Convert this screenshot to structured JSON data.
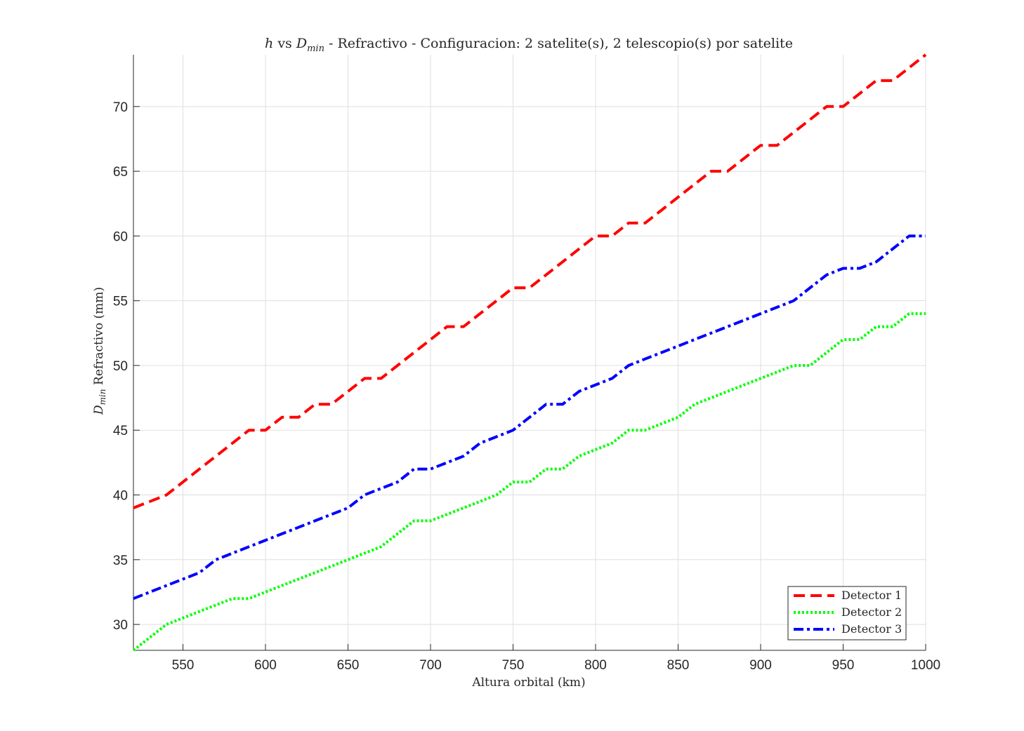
{
  "chart_data": {
    "type": "line",
    "title": {
      "italic_h": "h",
      "vs": " vs ",
      "D": "D",
      "sub": "min",
      "rest": " - Refractivo - Configuracion: 2 satelite(s), 2 telescopio(s) por satelite"
    },
    "xlabel": "Altura orbital (km)",
    "ylabel": {
      "D": "D",
      "sub": "min",
      "rest": " Refractivo (mm)"
    },
    "xlim": [
      520,
      1000
    ],
    "ylim": [
      28,
      74
    ],
    "xticks": [
      550,
      600,
      650,
      700,
      750,
      800,
      850,
      900,
      950,
      1000
    ],
    "yticks": [
      30,
      35,
      40,
      45,
      50,
      55,
      60,
      65,
      70
    ],
    "grid": true,
    "legend_position": "bottom-right",
    "x": [
      520,
      530,
      540,
      550,
      560,
      570,
      580,
      590,
      600,
      610,
      620,
      630,
      640,
      650,
      660,
      670,
      680,
      690,
      700,
      710,
      720,
      730,
      740,
      750,
      760,
      770,
      780,
      790,
      800,
      810,
      820,
      830,
      840,
      850,
      860,
      870,
      880,
      890,
      900,
      910,
      920,
      930,
      940,
      950,
      960,
      970,
      980,
      990,
      1000
    ],
    "series": [
      {
        "name": "Detector 1",
        "color": "#ff0000",
        "style": "dashed",
        "values": [
          39,
          39.5,
          40,
          41,
          42,
          43,
          44,
          45,
          45,
          46,
          46,
          47,
          47,
          48,
          49,
          49,
          50,
          51,
          52,
          53,
          53,
          54,
          55,
          56,
          56,
          57,
          58,
          59,
          60,
          60,
          61,
          61,
          62,
          63,
          64,
          65,
          65,
          66,
          67,
          67,
          68,
          69,
          70,
          70,
          71,
          72,
          72,
          73,
          74
        ]
      },
      {
        "name": "Detector 2",
        "color": "#00ff00",
        "style": "dotted",
        "values": [
          28,
          29,
          30,
          30.5,
          31,
          31.5,
          32,
          32,
          32.5,
          33,
          33.5,
          34,
          34.5,
          35,
          35.5,
          36,
          37,
          38,
          38,
          38.5,
          39,
          39.5,
          40,
          41,
          41,
          42,
          42,
          43,
          43.5,
          44,
          45,
          45,
          45.5,
          46,
          47,
          47.5,
          48,
          48.5,
          49,
          49.5,
          50,
          50,
          51,
          52,
          52,
          53,
          53,
          54,
          54
        ]
      },
      {
        "name": "Detector 3",
        "color": "#0000ff",
        "style": "dashdot",
        "values": [
          32,
          32.5,
          33,
          33.5,
          34,
          35,
          35.5,
          36,
          36.5,
          37,
          37.5,
          38,
          38.5,
          39,
          40,
          40.5,
          41,
          42,
          42,
          42.5,
          43,
          44,
          44.5,
          45,
          46,
          47,
          47,
          48,
          48.5,
          49,
          50,
          50.5,
          51,
          51.5,
          52,
          52.5,
          53,
          53.5,
          54,
          54.5,
          55,
          56,
          57,
          57.5,
          57.5,
          58,
          59,
          60,
          60
        ]
      }
    ]
  }
}
